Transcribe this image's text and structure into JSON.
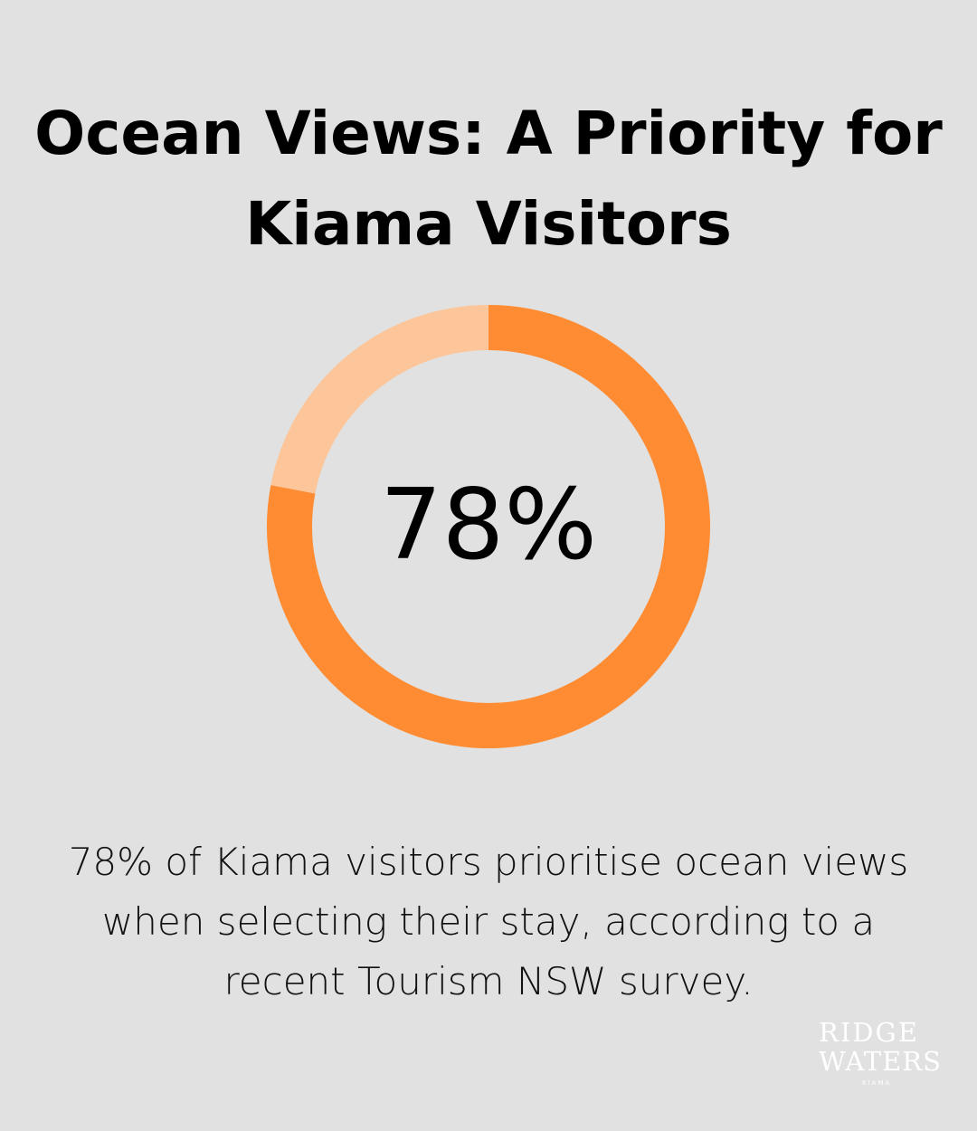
{
  "title": "Ocean Views: A Priority for Kiama Visitors",
  "chart_data": {
    "type": "pie",
    "title": "Ocean Views: A Priority for Kiama Visitors",
    "values": [
      78,
      22
    ],
    "center_label": "78%",
    "colors": [
      "#ff8c33",
      "#fdc69a"
    ]
  },
  "description": "78% of Kiama visitors prioritise ocean views when selecting their stay, according to a recent Tourism NSW survey.",
  "logo": {
    "line1": "RIDGE",
    "line2": "WATERS",
    "line3": "KIAMA"
  }
}
